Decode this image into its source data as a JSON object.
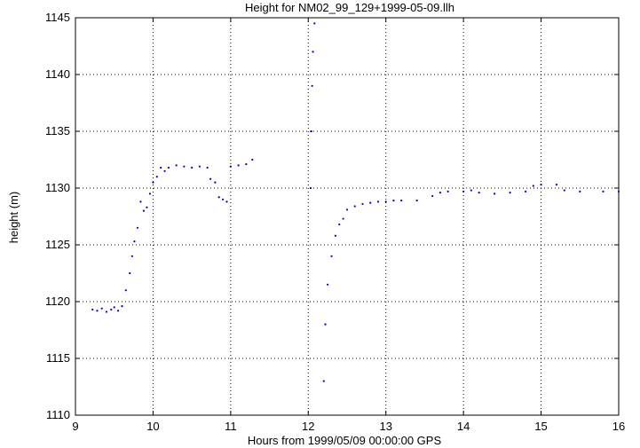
{
  "chart_data": {
    "type": "scatter",
    "title": "Height for NM02_99_129+1999-05-09.llh",
    "xlabel": "Hours from 1999/05/09 00:00:00 GPS",
    "ylabel": "height (m)",
    "xlim": [
      9,
      16
    ],
    "ylim": [
      1110,
      1145
    ],
    "xticks": [
      9,
      10,
      11,
      12,
      13,
      14,
      15,
      16
    ],
    "yticks": [
      1110,
      1115,
      1120,
      1125,
      1130,
      1135,
      1140,
      1145
    ],
    "grid": true,
    "color": "#0000cc",
    "series": [
      {
        "values": [
          [
            9.22,
            1119.3
          ],
          [
            9.28,
            1119.2
          ],
          [
            9.34,
            1119.4
          ],
          [
            9.4,
            1119.1
          ],
          [
            9.46,
            1119.3
          ],
          [
            9.5,
            1119.5
          ],
          [
            9.55,
            1119.2
          ],
          [
            9.6,
            1119.6
          ],
          [
            9.65,
            1121.0
          ],
          [
            9.7,
            1122.5
          ],
          [
            9.73,
            1124.0
          ],
          [
            9.76,
            1125.3
          ],
          [
            9.8,
            1126.5
          ],
          [
            9.84,
            1128.8
          ],
          [
            9.88,
            1128.0
          ],
          [
            9.92,
            1128.3
          ],
          [
            9.96,
            1129.5
          ],
          [
            10.0,
            1130.5
          ],
          [
            10.05,
            1131.0
          ],
          [
            10.1,
            1131.8
          ],
          [
            10.15,
            1131.5
          ],
          [
            10.2,
            1131.8
          ],
          [
            10.3,
            1132.0
          ],
          [
            10.4,
            1131.9
          ],
          [
            10.5,
            1131.8
          ],
          [
            10.6,
            1131.9
          ],
          [
            10.7,
            1131.8
          ],
          [
            10.74,
            1130.8
          ],
          [
            10.8,
            1130.5
          ],
          [
            10.85,
            1129.2
          ],
          [
            10.9,
            1129.0
          ],
          [
            10.95,
            1128.8
          ],
          [
            11.0,
            1131.9
          ],
          [
            11.1,
            1132.0
          ],
          [
            11.2,
            1132.1
          ],
          [
            11.28,
            1132.5
          ],
          [
            12.03,
            1130.0
          ],
          [
            12.04,
            1135.0
          ],
          [
            12.05,
            1139.0
          ],
          [
            12.06,
            1142.0
          ],
          [
            12.08,
            1144.5
          ],
          [
            12.2,
            1113.0
          ],
          [
            12.22,
            1118.0
          ],
          [
            12.25,
            1121.5
          ],
          [
            12.3,
            1124.0
          ],
          [
            12.35,
            1125.8
          ],
          [
            12.4,
            1126.8
          ],
          [
            12.45,
            1127.3
          ],
          [
            12.5,
            1128.1
          ],
          [
            12.6,
            1128.4
          ],
          [
            12.7,
            1128.6
          ],
          [
            12.8,
            1128.7
          ],
          [
            12.9,
            1128.8
          ],
          [
            13.0,
            1128.8
          ],
          [
            13.1,
            1128.9
          ],
          [
            13.2,
            1128.9
          ],
          [
            13.4,
            1128.9
          ],
          [
            13.6,
            1129.3
          ],
          [
            13.7,
            1129.6
          ],
          [
            13.8,
            1129.7
          ],
          [
            14.0,
            1129.7
          ],
          [
            14.1,
            1129.8
          ],
          [
            14.2,
            1129.6
          ],
          [
            14.4,
            1129.5
          ],
          [
            14.6,
            1129.6
          ],
          [
            14.8,
            1129.7
          ],
          [
            14.9,
            1130.2
          ],
          [
            15.0,
            1130.3
          ],
          [
            15.2,
            1130.3
          ],
          [
            15.3,
            1129.8
          ],
          [
            15.5,
            1129.7
          ],
          [
            15.8,
            1129.7
          ],
          [
            16.0,
            1129.7
          ]
        ]
      }
    ]
  }
}
